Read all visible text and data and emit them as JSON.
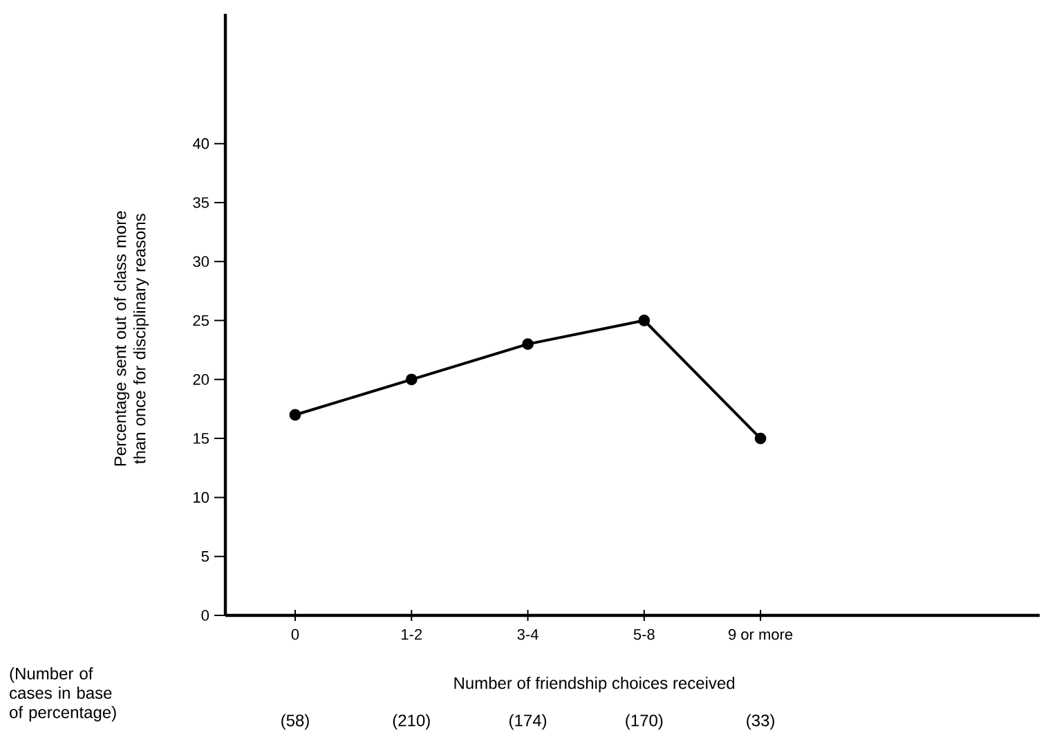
{
  "chart_data": {
    "type": "line",
    "xlabel": "Number of friendship choices received",
    "ylabel": "Percentage sent out of class more than once for disciplinary reasons",
    "categories": [
      "0",
      "1-2",
      "3-4",
      "5-8",
      "9 or more"
    ],
    "values": [
      17,
      20,
      23,
      25,
      15
    ],
    "color": "#000000",
    "marker": "circle",
    "line_style": "solid",
    "grid": false,
    "ylim": [
      0,
      51
    ],
    "yticks": [
      0,
      5,
      10,
      15,
      20,
      25,
      30,
      35,
      40
    ],
    "annotations": [
      "(Number of cases in base of percentage)",
      "(58)",
      "(210)",
      "(174)",
      "(170)",
      "(33)"
    ]
  }
}
